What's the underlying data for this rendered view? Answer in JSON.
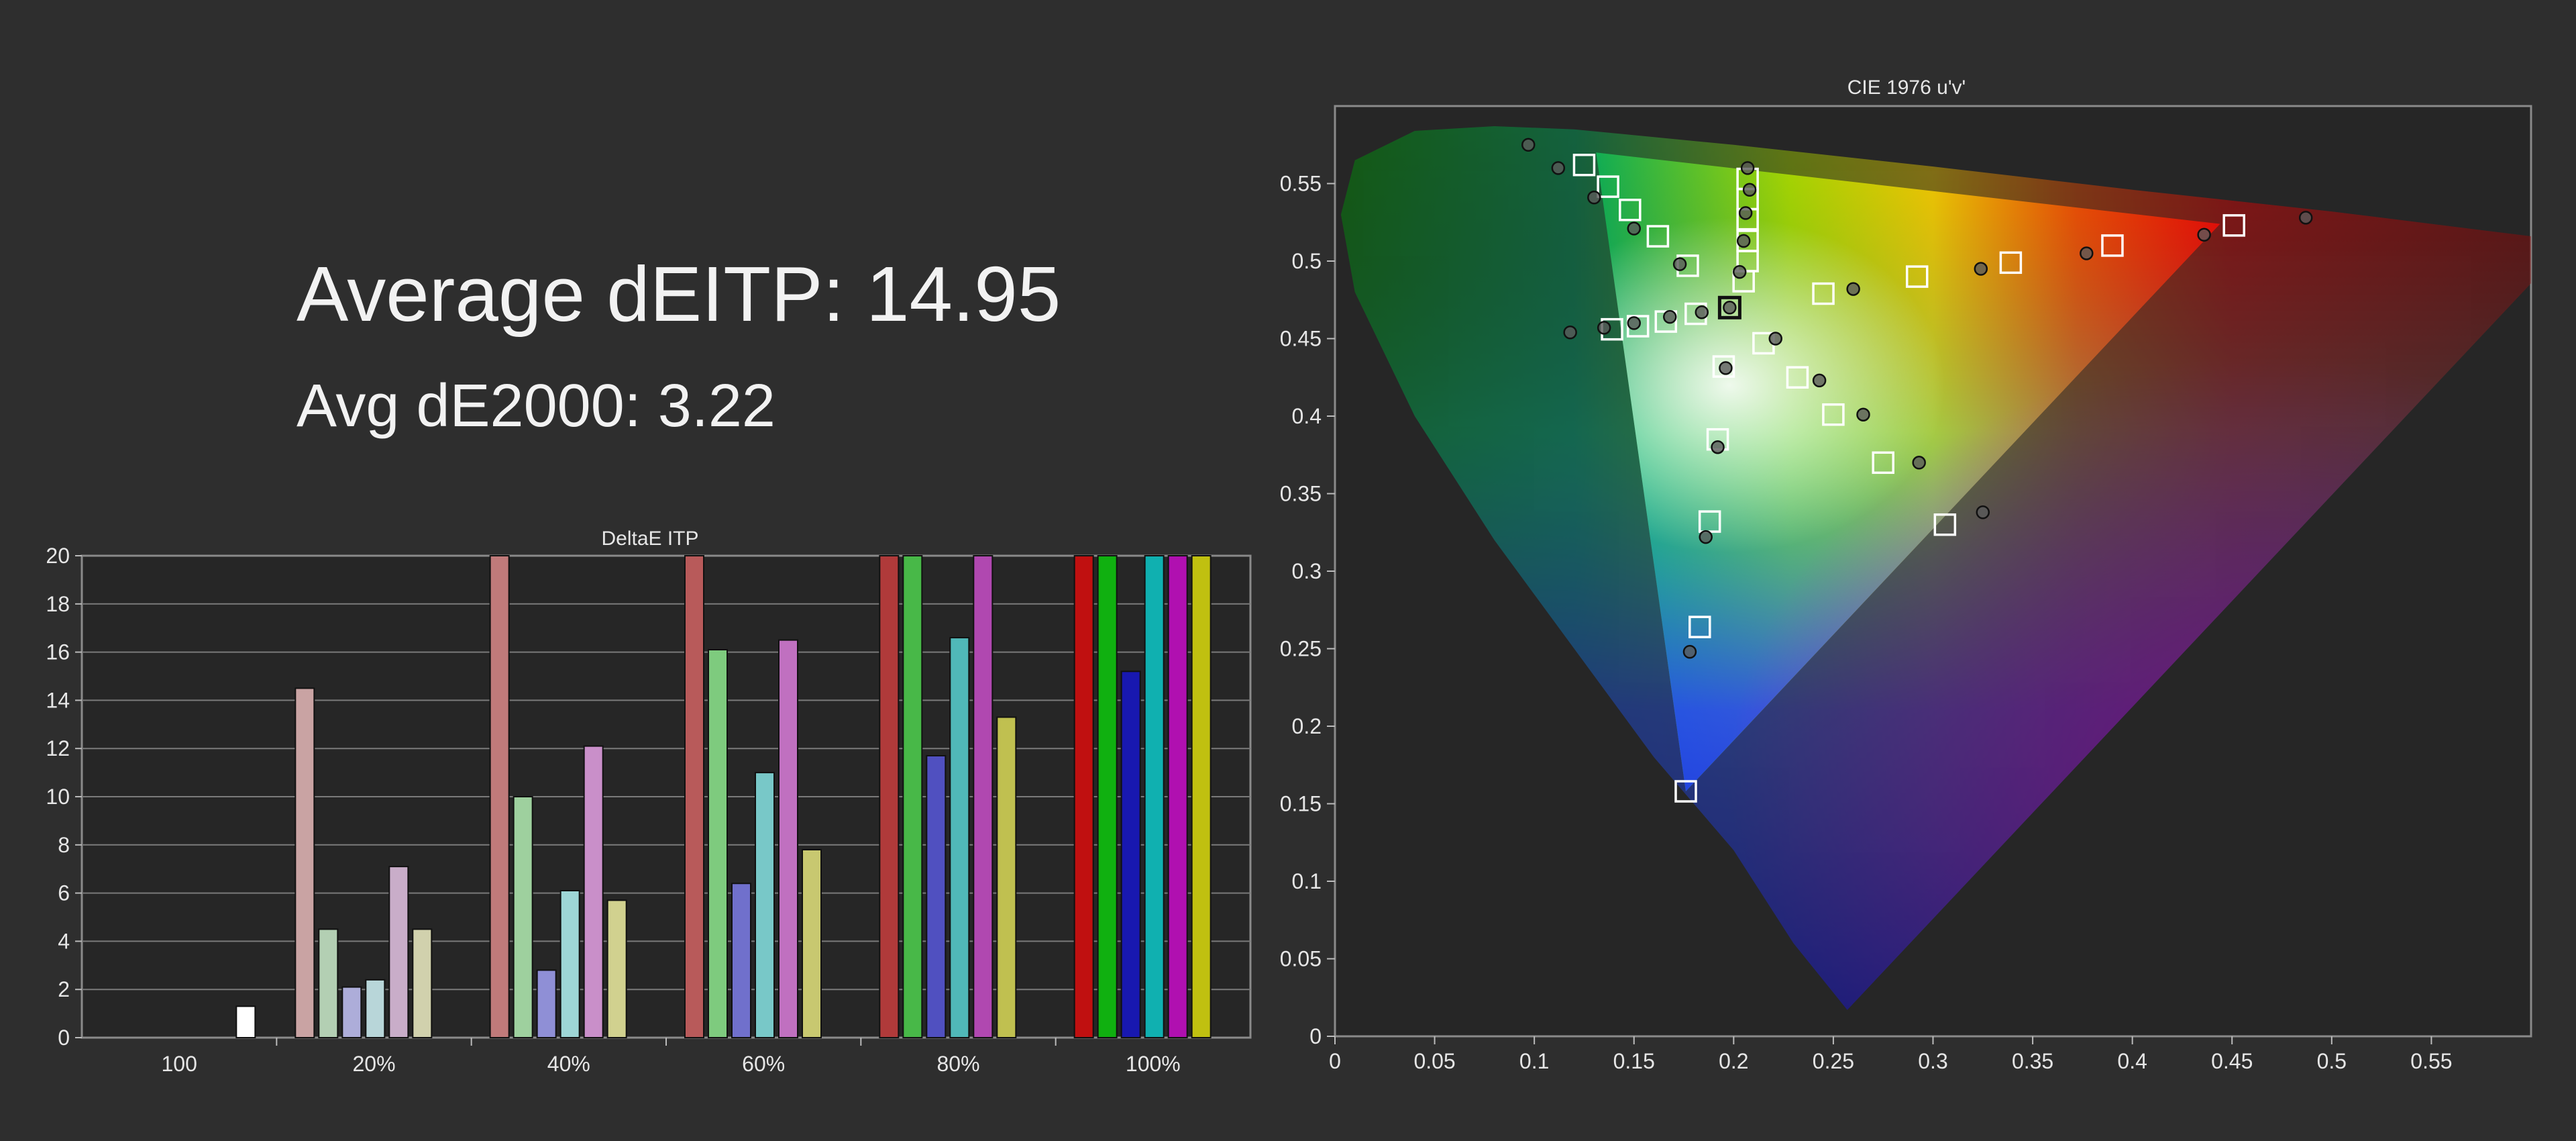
{
  "summary": {
    "average_deitp": "Average dEITP: 14.95",
    "avg_de2000": "Avg dE2000: 3.22"
  },
  "chart_data": [
    {
      "type": "bar",
      "title": "DeltaE ITP",
      "ylim": [
        0,
        20
      ],
      "yticks": [
        "0",
        "2",
        "4",
        "6",
        "8",
        "10",
        "12",
        "14",
        "16",
        "18",
        "20"
      ],
      "categories": [
        "100",
        "20%",
        "40%",
        "60%",
        "80%",
        "100%"
      ],
      "series": [
        {
          "color": "#ffffff",
          "values": [
            1.3,
            0,
            0,
            0,
            0,
            0
          ]
        },
        {
          "color": "#c49898",
          "values": [
            0,
            14.5,
            20,
            20,
            20,
            20
          ]
        },
        {
          "color": "#a8c8a8",
          "values": [
            0,
            4.5,
            10,
            16.1,
            20,
            20
          ]
        },
        {
          "color": "#a8a8d8",
          "values": [
            0,
            2.1,
            2.8,
            6.4,
            11.7,
            15.2
          ]
        },
        {
          "color": "#b0d4d8",
          "values": [
            0,
            2.4,
            6.1,
            11,
            16.6,
            20
          ]
        },
        {
          "color": "#cca8cc",
          "values": [
            0,
            7.1,
            12.1,
            16.5,
            20,
            20
          ]
        },
        {
          "color": "#d0d0a8",
          "values": [
            0,
            4.5,
            5.7,
            7.8,
            13.3,
            20
          ]
        }
      ],
      "group_colors": [
        [
          "#ffffff"
        ],
        [
          "#c9a3a3",
          "#b3cfb3",
          "#adadd9",
          "#b8d6d9",
          "#c9adc9",
          "#d1d1ad"
        ],
        [
          "#c07a7a",
          "#9ed09e",
          "#8f8fd6",
          "#9ed6d6",
          "#c98fc9",
          "#d1d18f"
        ],
        [
          "#b85a5a",
          "#7ecb7e",
          "#7070cc",
          "#78c8c8",
          "#c070c0",
          "#c8c870"
        ],
        [
          "#b03a3a",
          "#48b848",
          "#5050c0",
          "#50b8b8",
          "#b048b0",
          "#c0c050"
        ],
        [
          "#c01010",
          "#10b010",
          "#1818b0",
          "#10b0b0",
          "#b010b0",
          "#c0c010"
        ]
      ],
      "gridlines": true
    },
    {
      "type": "scatter",
      "title": "CIE 1976 u'v'",
      "xlim": [
        0,
        0.6
      ],
      "ylim": [
        0,
        0.6
      ],
      "xticks": [
        "0",
        "0.05",
        "0.1",
        "0.15",
        "0.2",
        "0.25",
        "0.3",
        "0.35",
        "0.4",
        "0.45",
        "0.5",
        "0.55"
      ],
      "yticks": [
        "0",
        "0.05",
        "0.1",
        "0.15",
        "0.2",
        "0.25",
        "0.3",
        "0.35",
        "0.4",
        "0.45",
        "0.5",
        "0.55"
      ],
      "targets": [
        [
          0.125,
          0.562
        ],
        [
          0.137,
          0.548
        ],
        [
          0.148,
          0.533
        ],
        [
          0.162,
          0.516
        ],
        [
          0.177,
          0.497
        ],
        [
          0.207,
          0.553
        ],
        [
          0.207,
          0.54
        ],
        [
          0.207,
          0.527
        ],
        [
          0.207,
          0.513
        ],
        [
          0.207,
          0.5
        ],
        [
          0.205,
          0.487
        ],
        [
          0.139,
          0.456
        ],
        [
          0.152,
          0.458
        ],
        [
          0.166,
          0.461
        ],
        [
          0.181,
          0.466
        ],
        [
          0.198,
          0.47
        ],
        [
          0.195,
          0.432
        ],
        [
          0.192,
          0.385
        ],
        [
          0.188,
          0.332
        ],
        [
          0.183,
          0.264
        ],
        [
          0.176,
          0.158
        ],
        [
          0.215,
          0.447
        ],
        [
          0.232,
          0.425
        ],
        [
          0.25,
          0.401
        ],
        [
          0.275,
          0.37
        ],
        [
          0.306,
          0.33
        ],
        [
          0.245,
          0.479
        ],
        [
          0.292,
          0.49
        ],
        [
          0.339,
          0.499
        ],
        [
          0.39,
          0.51
        ],
        [
          0.451,
          0.523
        ]
      ],
      "measured": [
        [
          0.097,
          0.575
        ],
        [
          0.112,
          0.56
        ],
        [
          0.13,
          0.541
        ],
        [
          0.15,
          0.521
        ],
        [
          0.173,
          0.498
        ],
        [
          0.207,
          0.56
        ],
        [
          0.208,
          0.546
        ],
        [
          0.206,
          0.531
        ],
        [
          0.205,
          0.513
        ],
        [
          0.203,
          0.493
        ],
        [
          0.118,
          0.454
        ],
        [
          0.135,
          0.457
        ],
        [
          0.15,
          0.46
        ],
        [
          0.168,
          0.464
        ],
        [
          0.184,
          0.467
        ],
        [
          0.198,
          0.47
        ],
        [
          0.196,
          0.431
        ],
        [
          0.192,
          0.38
        ],
        [
          0.186,
          0.322
        ],
        [
          0.178,
          0.248
        ],
        [
          0.221,
          0.45
        ],
        [
          0.243,
          0.423
        ],
        [
          0.265,
          0.401
        ],
        [
          0.293,
          0.37
        ],
        [
          0.325,
          0.338
        ],
        [
          0.26,
          0.482
        ],
        [
          0.324,
          0.495
        ],
        [
          0.377,
          0.505
        ],
        [
          0.436,
          0.517
        ],
        [
          0.487,
          0.528
        ]
      ]
    }
  ]
}
